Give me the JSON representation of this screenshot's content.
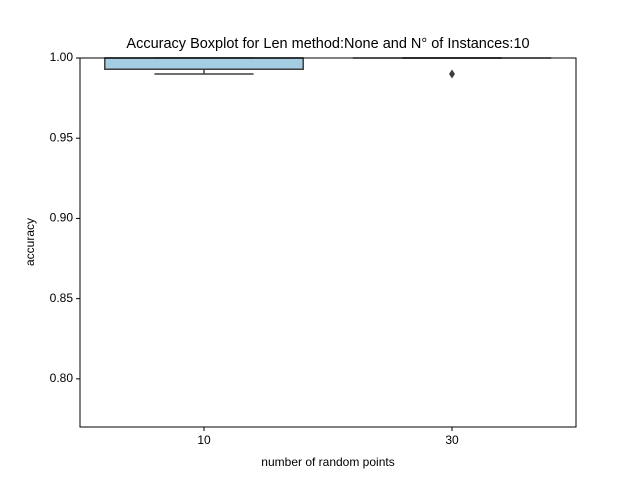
{
  "chart_data": {
    "type": "box",
    "title": "Accuracy Boxplot for Len method:None and N° of Instances:10",
    "xlabel": "number of random points",
    "ylabel": "accuracy",
    "categories": [
      "10",
      "30"
    ],
    "boxes": [
      {
        "color": "#a6cee3",
        "min": 0.99,
        "q1": 0.993,
        "median": 1.0,
        "q3": 1.0,
        "max": 1.0,
        "outliers": []
      },
      {
        "color": "#1f78b4",
        "min": 1.0,
        "q1": 1.0,
        "median": 1.0,
        "q3": 1.0,
        "max": 1.0,
        "outliers": [
          0.99
        ]
      }
    ],
    "ylim": [
      0.77,
      1.0
    ],
    "yticks": [
      {
        "value": 0.8,
        "label": "0.80"
      },
      {
        "value": 0.85,
        "label": "0.85"
      },
      {
        "value": 0.9,
        "label": "0.90"
      },
      {
        "value": 0.95,
        "label": "0.95"
      },
      {
        "value": 1.0,
        "label": "1.00"
      }
    ]
  }
}
